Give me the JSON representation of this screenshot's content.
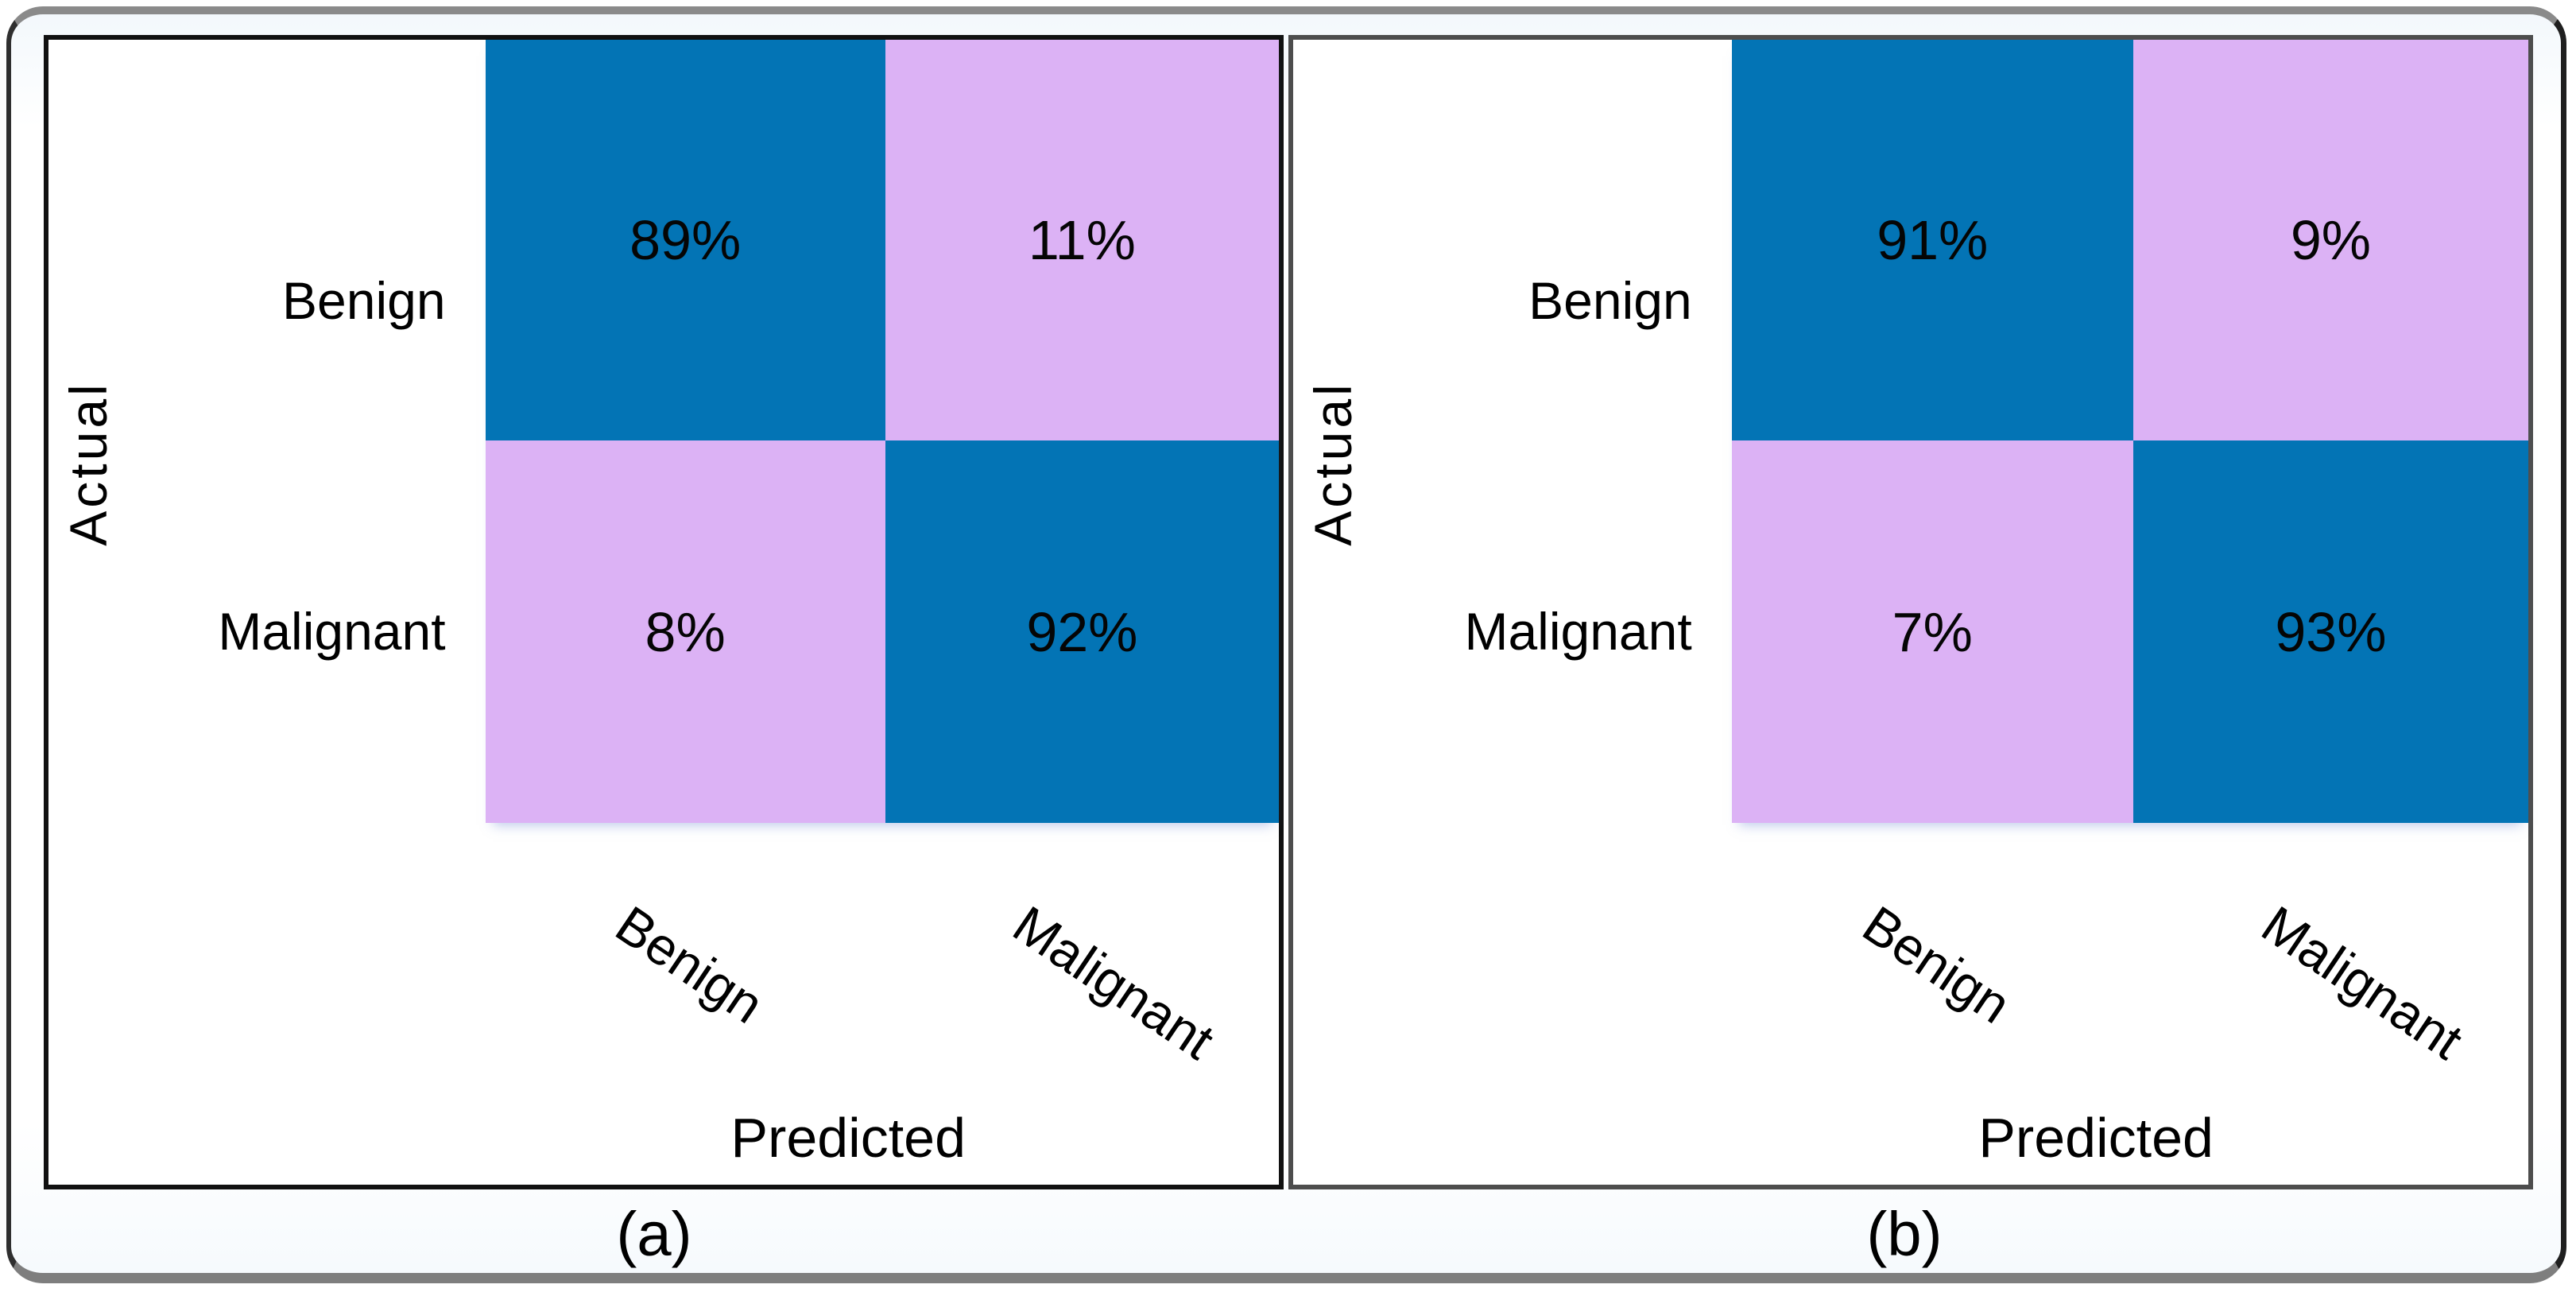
{
  "colors": {
    "diagonal_cell": "#0374b5",
    "off_diagonal_cell": "#dcb2f5",
    "panel_a_border": "#111111",
    "panel_b_border": "#4d4d4d",
    "frame_border_dark": "#2f2f2f",
    "frame_border_gray": "#7e7e7e",
    "frame_background": "#f3f8fc",
    "text": "#000000"
  },
  "panels": [
    {
      "caption": "(a)",
      "y_axis_label": "Actual",
      "x_axis_label": "Predicted",
      "row_labels": [
        "Benign",
        "Malignant"
      ],
      "col_labels": [
        "Benign",
        "Malignant"
      ],
      "cells": [
        [
          "89%",
          "11%"
        ],
        [
          "8%",
          "92%"
        ]
      ]
    },
    {
      "caption": "(b)",
      "y_axis_label": "Actual",
      "x_axis_label": "Predicted",
      "row_labels": [
        "Benign",
        "Malignant"
      ],
      "col_labels": [
        "Benign",
        "Malignant"
      ],
      "cells": [
        [
          "91%",
          "9%"
        ],
        [
          "7%",
          "93%"
        ]
      ]
    }
  ],
  "chart_data": [
    {
      "type": "heatmap",
      "title": "(a)",
      "xlabel": "Predicted",
      "ylabel": "Actual",
      "x_categories": [
        "Benign",
        "Malignant"
      ],
      "y_categories": [
        "Benign",
        "Malignant"
      ],
      "values_percent": [
        [
          89,
          11
        ],
        [
          8,
          92
        ]
      ],
      "cell_colors": [
        [
          "#0374b5",
          "#dcb2f5"
        ],
        [
          "#dcb2f5",
          "#0374b5"
        ]
      ],
      "legend": "none",
      "grid": false
    },
    {
      "type": "heatmap",
      "title": "(b)",
      "xlabel": "Predicted",
      "ylabel": "Actual",
      "x_categories": [
        "Benign",
        "Malignant"
      ],
      "y_categories": [
        "Benign",
        "Malignant"
      ],
      "values_percent": [
        [
          91,
          9
        ],
        [
          7,
          93
        ]
      ],
      "cell_colors": [
        [
          "#0374b5",
          "#dcb2f5"
        ],
        [
          "#dcb2f5",
          "#0374b5"
        ]
      ],
      "legend": "none",
      "grid": false
    }
  ]
}
